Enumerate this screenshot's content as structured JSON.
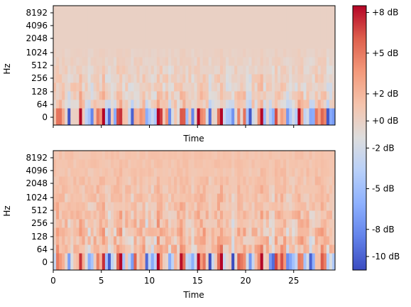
{
  "chart_data": [
    {
      "type": "heatmap",
      "panel": "top",
      "xlabel": "Time",
      "ylabel": "Hz",
      "x_tick_labels_shown": false,
      "xlim": [
        0,
        29.3
      ],
      "x_ticks": [
        0,
        5,
        10,
        15,
        20,
        25
      ],
      "y_tick_labels": [
        "0",
        "64",
        "128",
        "256",
        "512",
        "1024",
        "2048",
        "4096",
        "8192"
      ],
      "description_values": {
        "low_band_db_pattern": "strong alternating red/blue columns near 0 Hz, mostly neutral above 1024 Hz",
        "time_bins": 98,
        "freq_bins": 14
      }
    },
    {
      "type": "heatmap",
      "panel": "bottom",
      "xlabel": "Time",
      "ylabel": "Hz",
      "x_tick_labels_shown": true,
      "xlim": [
        0,
        29.3
      ],
      "x_ticks": [
        0,
        5,
        10,
        15,
        20,
        25
      ],
      "x_tick_labels": [
        "0",
        "5",
        "10",
        "15",
        "20",
        "25"
      ],
      "y_tick_labels": [
        "0",
        "64",
        "128",
        "256",
        "512",
        "1024",
        "2048",
        "4096",
        "8192"
      ],
      "description_values": {
        "low_band_db_pattern": "alternating red/blue columns near 0 Hz, warm (~+1 dB) tint across upper bands",
        "time_bins": 98,
        "freq_bins": 14
      }
    }
  ],
  "colorbar": {
    "colormap": "coolwarm",
    "vmin": -11,
    "vmax": 8.5,
    "ticks": [
      8,
      5,
      2,
      0,
      -2,
      -5,
      -8,
      -10
    ],
    "tick_labels": [
      "+8 dB",
      "+5 dB",
      "+2 dB",
      "+0 dB",
      "-2 dB",
      "-5 dB",
      "-8 dB",
      "-10 dB"
    ]
  }
}
